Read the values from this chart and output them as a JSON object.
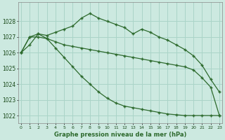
{
  "x": [
    0,
    1,
    2,
    3,
    4,
    5,
    6,
    7,
    8,
    9,
    10,
    11,
    12,
    13,
    14,
    15,
    16,
    17,
    18,
    19,
    20,
    21,
    22,
    23
  ],
  "line1": [
    1026.0,
    1026.5,
    1027.2,
    1027.1,
    1027.3,
    1027.5,
    1027.7,
    1028.2,
    1028.5,
    1028.2,
    1028.0,
    1027.8,
    1027.6,
    1027.2,
    1027.5,
    1027.3,
    1027.0,
    1026.8,
    1026.5,
    1026.2,
    1025.8,
    1025.2,
    1024.3,
    1023.5
  ],
  "line2": [
    1026.0,
    1027.0,
    1027.2,
    1026.9,
    1026.7,
    1026.5,
    1026.4,
    1026.3,
    1026.2,
    1026.1,
    1026.0,
    1025.9,
    1025.8,
    1025.7,
    1025.6,
    1025.5,
    1025.4,
    1025.3,
    1025.2,
    1025.1,
    1024.9,
    1024.4,
    1023.8,
    1022.0
  ],
  "line3": [
    1026.0,
    1027.0,
    1027.0,
    1026.9,
    1026.3,
    1025.7,
    1025.1,
    1024.5,
    1024.0,
    1023.5,
    1023.1,
    1022.8,
    1022.6,
    1022.5,
    1022.4,
    1022.3,
    1022.2,
    1022.1,
    1022.05,
    1022.0,
    1022.0,
    1022.0,
    1022.0,
    1022.0
  ],
  "background_color": "#cce9e0",
  "grid_color": "#aad4c8",
  "line_color": "#2d6a2d",
  "xlabel": "Graphe pression niveau de la mer (hPa)",
  "ylim": [
    1021.5,
    1029.2
  ],
  "xlim": [
    -0.3,
    23.3
  ],
  "yticks": [
    1022,
    1023,
    1024,
    1025,
    1026,
    1027,
    1028
  ],
  "xticks": [
    0,
    1,
    2,
    3,
    4,
    5,
    6,
    7,
    8,
    9,
    10,
    11,
    12,
    13,
    14,
    15,
    16,
    17,
    18,
    19,
    20,
    21,
    22,
    23
  ]
}
